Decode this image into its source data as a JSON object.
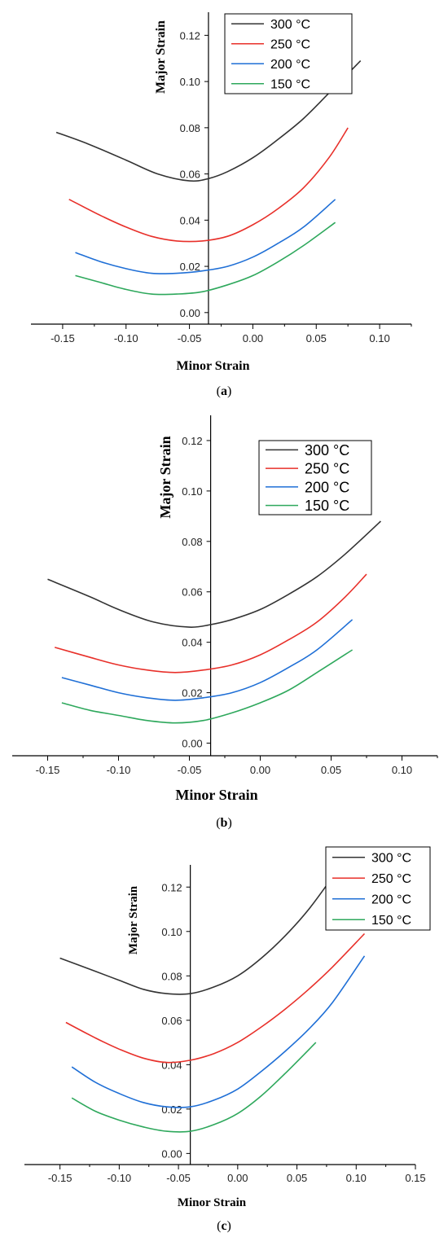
{
  "colors": {
    "300 °C": "#333333",
    "250 °C": "#e8302a",
    "200 °C": "#1f6fd6",
    "150 °C": "#2ea85c"
  },
  "chart_data": [
    {
      "type": "line",
      "caption": "(a)",
      "xlabel": "Minor Strain",
      "ylabel": "Major Strain",
      "xlim": [
        -0.175,
        0.125
      ],
      "ylim": [
        -0.005,
        0.13
      ],
      "x_ticks": [
        -0.15,
        -0.1,
        -0.05,
        0.0,
        0.05,
        0.1
      ],
      "y_ticks": [
        0.0,
        0.02,
        0.04,
        0.06,
        0.08,
        0.1,
        0.12
      ],
      "x_tick_labels": [
        "-0.15",
        "-0.10",
        "-0.05",
        "0.00",
        "0.05",
        "0.10"
      ],
      "y_tick_labels": [
        "0.00",
        "0.02",
        "0.04",
        "0.06",
        "0.08",
        "0.10",
        "0.12"
      ],
      "vertical_axis_at_x": -0.035,
      "legend_position": "top-right",
      "series": [
        {
          "name": "300 °C",
          "x": [
            -0.155,
            -0.13,
            -0.1,
            -0.075,
            -0.05,
            -0.035,
            -0.02,
            0.0,
            0.02,
            0.04,
            0.06,
            0.085
          ],
          "y": [
            0.078,
            0.073,
            0.066,
            0.06,
            0.057,
            0.058,
            0.061,
            0.067,
            0.075,
            0.084,
            0.095,
            0.109
          ]
        },
        {
          "name": "250 °C",
          "x": [
            -0.145,
            -0.12,
            -0.1,
            -0.08,
            -0.06,
            -0.04,
            -0.02,
            0.0,
            0.02,
            0.04,
            0.06,
            0.075
          ],
          "y": [
            0.049,
            0.042,
            0.037,
            0.033,
            0.031,
            0.031,
            0.033,
            0.038,
            0.045,
            0.054,
            0.067,
            0.08
          ]
        },
        {
          "name": "200 °C",
          "x": [
            -0.14,
            -0.12,
            -0.1,
            -0.08,
            -0.06,
            -0.04,
            -0.02,
            0.0,
            0.02,
            0.04,
            0.065
          ],
          "y": [
            0.026,
            0.022,
            0.019,
            0.017,
            0.017,
            0.018,
            0.02,
            0.024,
            0.03,
            0.037,
            0.049
          ]
        },
        {
          "name": "150 °C",
          "x": [
            -0.14,
            -0.12,
            -0.1,
            -0.08,
            -0.06,
            -0.04,
            -0.02,
            0.0,
            0.02,
            0.04,
            0.065
          ],
          "y": [
            0.016,
            0.013,
            0.01,
            0.008,
            0.008,
            0.009,
            0.012,
            0.016,
            0.022,
            0.029,
            0.039
          ]
        }
      ]
    },
    {
      "type": "line",
      "caption": "(b)",
      "xlabel": "Minor Strain",
      "ylabel": "Major Strain",
      "xlim": [
        -0.175,
        0.125
      ],
      "ylim": [
        -0.005,
        0.13
      ],
      "x_ticks": [
        -0.15,
        -0.1,
        -0.05,
        0.0,
        0.05,
        0.1
      ],
      "y_ticks": [
        0.0,
        0.02,
        0.04,
        0.06,
        0.08,
        0.1,
        0.12
      ],
      "x_tick_labels": [
        "-0.15",
        "-0.10",
        "-0.05",
        "0.00",
        "0.05",
        "0.10"
      ],
      "y_tick_labels": [
        "0.00",
        "0.02",
        "0.04",
        "0.06",
        "0.08",
        "0.10",
        "0.12"
      ],
      "vertical_axis_at_x": -0.035,
      "legend_position": "top-right",
      "series": [
        {
          "name": "300 °C",
          "x": [
            -0.15,
            -0.12,
            -0.1,
            -0.075,
            -0.05,
            -0.035,
            -0.02,
            0.0,
            0.02,
            0.04,
            0.06,
            0.085
          ],
          "y": [
            0.065,
            0.058,
            0.053,
            0.048,
            0.046,
            0.047,
            0.049,
            0.053,
            0.059,
            0.066,
            0.075,
            0.088
          ]
        },
        {
          "name": "250 °C",
          "x": [
            -0.145,
            -0.12,
            -0.1,
            -0.08,
            -0.06,
            -0.04,
            -0.02,
            0.0,
            0.02,
            0.04,
            0.06,
            0.075
          ],
          "y": [
            0.038,
            0.034,
            0.031,
            0.029,
            0.028,
            0.029,
            0.031,
            0.035,
            0.041,
            0.048,
            0.058,
            0.067
          ]
        },
        {
          "name": "200 °C",
          "x": [
            -0.14,
            -0.12,
            -0.1,
            -0.08,
            -0.06,
            -0.04,
            -0.02,
            0.0,
            0.02,
            0.04,
            0.065
          ],
          "y": [
            0.026,
            0.023,
            0.02,
            0.018,
            0.017,
            0.018,
            0.02,
            0.024,
            0.03,
            0.037,
            0.049
          ]
        },
        {
          "name": "150 °C",
          "x": [
            -0.14,
            -0.12,
            -0.1,
            -0.08,
            -0.06,
            -0.04,
            -0.02,
            0.0,
            0.02,
            0.04,
            0.065
          ],
          "y": [
            0.016,
            0.013,
            0.011,
            0.009,
            0.008,
            0.009,
            0.012,
            0.016,
            0.021,
            0.028,
            0.037
          ]
        }
      ]
    },
    {
      "type": "line",
      "caption": "(c)",
      "xlabel": "Minor Strain",
      "ylabel": "Major Strain",
      "xlim": [
        -0.18,
        0.15
      ],
      "ylim": [
        -0.005,
        0.13
      ],
      "x_ticks": [
        -0.15,
        -0.1,
        -0.05,
        0.0,
        0.05,
        0.1,
        0.15
      ],
      "y_ticks": [
        0.0,
        0.02,
        0.04,
        0.06,
        0.08,
        0.1,
        0.12
      ],
      "x_tick_labels": [
        "-0.15",
        "-0.10",
        "-0.05",
        "0.00",
        "0.05",
        "0.10",
        "0.15"
      ],
      "y_tick_labels": [
        "0.00",
        "0.02",
        "0.04",
        "0.06",
        "0.08",
        "0.10",
        "0.12"
      ],
      "vertical_axis_at_x": -0.04,
      "legend_position": "top-right",
      "series": [
        {
          "name": "300 °C",
          "x": [
            -0.15,
            -0.12,
            -0.1,
            -0.08,
            -0.06,
            -0.04,
            -0.02,
            0.0,
            0.02,
            0.04,
            0.06,
            0.082
          ],
          "y": [
            0.088,
            0.082,
            0.078,
            0.074,
            0.072,
            0.072,
            0.075,
            0.08,
            0.088,
            0.098,
            0.11,
            0.126
          ]
        },
        {
          "name": "250 °C",
          "x": [
            -0.145,
            -0.12,
            -0.1,
            -0.08,
            -0.06,
            -0.04,
            -0.02,
            0.0,
            0.02,
            0.04,
            0.06,
            0.08,
            0.107
          ],
          "y": [
            0.059,
            0.052,
            0.047,
            0.043,
            0.041,
            0.042,
            0.045,
            0.05,
            0.057,
            0.065,
            0.074,
            0.084,
            0.099
          ]
        },
        {
          "name": "200 °C",
          "x": [
            -0.14,
            -0.12,
            -0.1,
            -0.08,
            -0.06,
            -0.04,
            -0.02,
            0.0,
            0.02,
            0.04,
            0.06,
            0.08,
            0.107
          ],
          "y": [
            0.039,
            0.032,
            0.027,
            0.023,
            0.021,
            0.021,
            0.024,
            0.029,
            0.037,
            0.046,
            0.056,
            0.068,
            0.089
          ]
        },
        {
          "name": "150 °C",
          "x": [
            -0.14,
            -0.12,
            -0.1,
            -0.08,
            -0.06,
            -0.04,
            -0.02,
            0.0,
            0.02,
            0.04,
            0.066
          ],
          "y": [
            0.025,
            0.019,
            0.015,
            0.012,
            0.01,
            0.01,
            0.013,
            0.018,
            0.026,
            0.036,
            0.05
          ]
        }
      ]
    }
  ]
}
